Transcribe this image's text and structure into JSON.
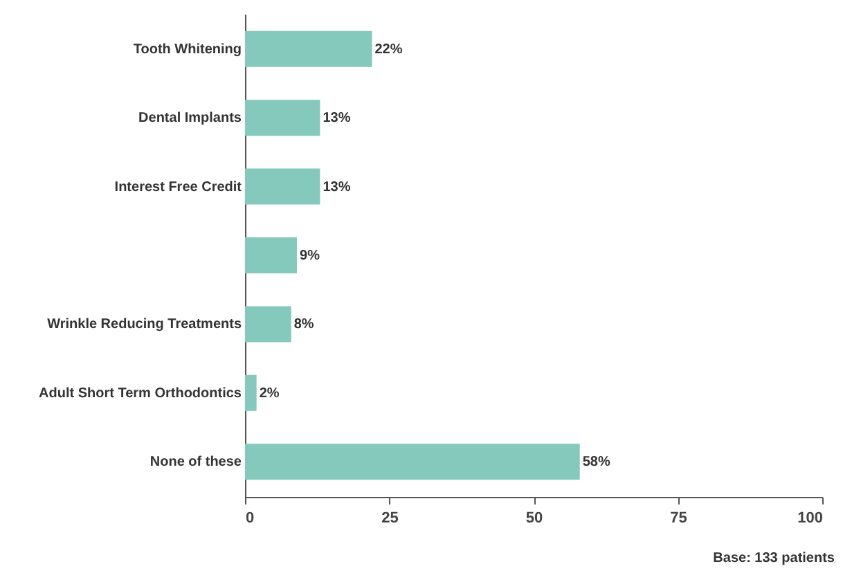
{
  "chart_data": {
    "type": "bar",
    "orientation": "horizontal",
    "categories": [
      "Tooth Whitening",
      "Dental Implants",
      "Interest Free Credit",
      null,
      "Wrinkle Reducing Treatments",
      "Adult Short Term Orthodontics",
      "None of these"
    ],
    "values": [
      22,
      13,
      13,
      9,
      8,
      2,
      58
    ],
    "value_labels": [
      "22%",
      "13%",
      "13%",
      "9%",
      "8%",
      "2%",
      "58%"
    ],
    "color": "#84c9bb",
    "xlim": [
      0,
      100
    ],
    "xticks": [
      0,
      25,
      50,
      75,
      100
    ],
    "grid": false,
    "annotations": [
      "Base: 133 patients"
    ]
  }
}
